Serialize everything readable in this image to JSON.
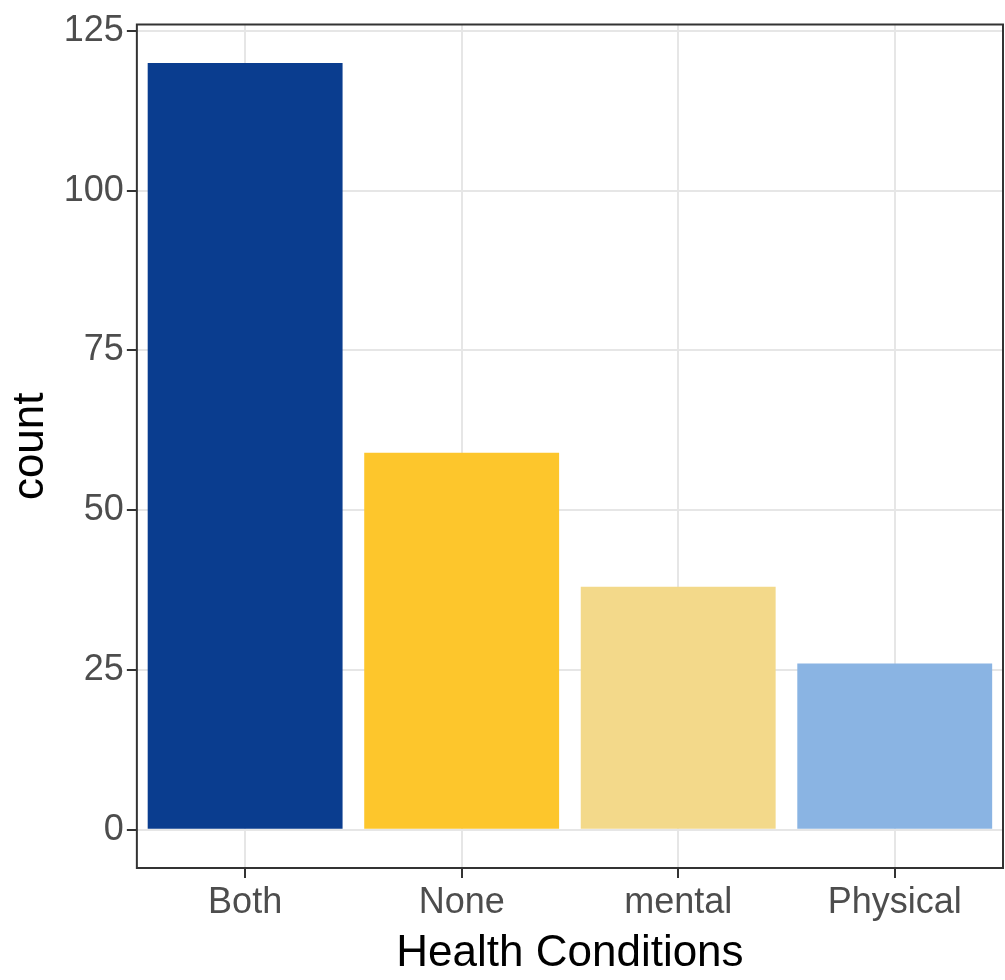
{
  "chart_data": {
    "type": "bar",
    "xlabel": "Health Conditions",
    "ylabel": "count",
    "categories": [
      "Both",
      "None",
      "mental",
      "Physical"
    ],
    "values": [
      120,
      59,
      38,
      26
    ],
    "colors": [
      "#0a3d8f",
      "#fdc62c",
      "#f3d98a",
      "#8ab4e3"
    ],
    "ylim": [
      -6,
      126
    ],
    "yticks": [
      0,
      25,
      50,
      75,
      100,
      125
    ],
    "grid": true,
    "legend": false
  }
}
